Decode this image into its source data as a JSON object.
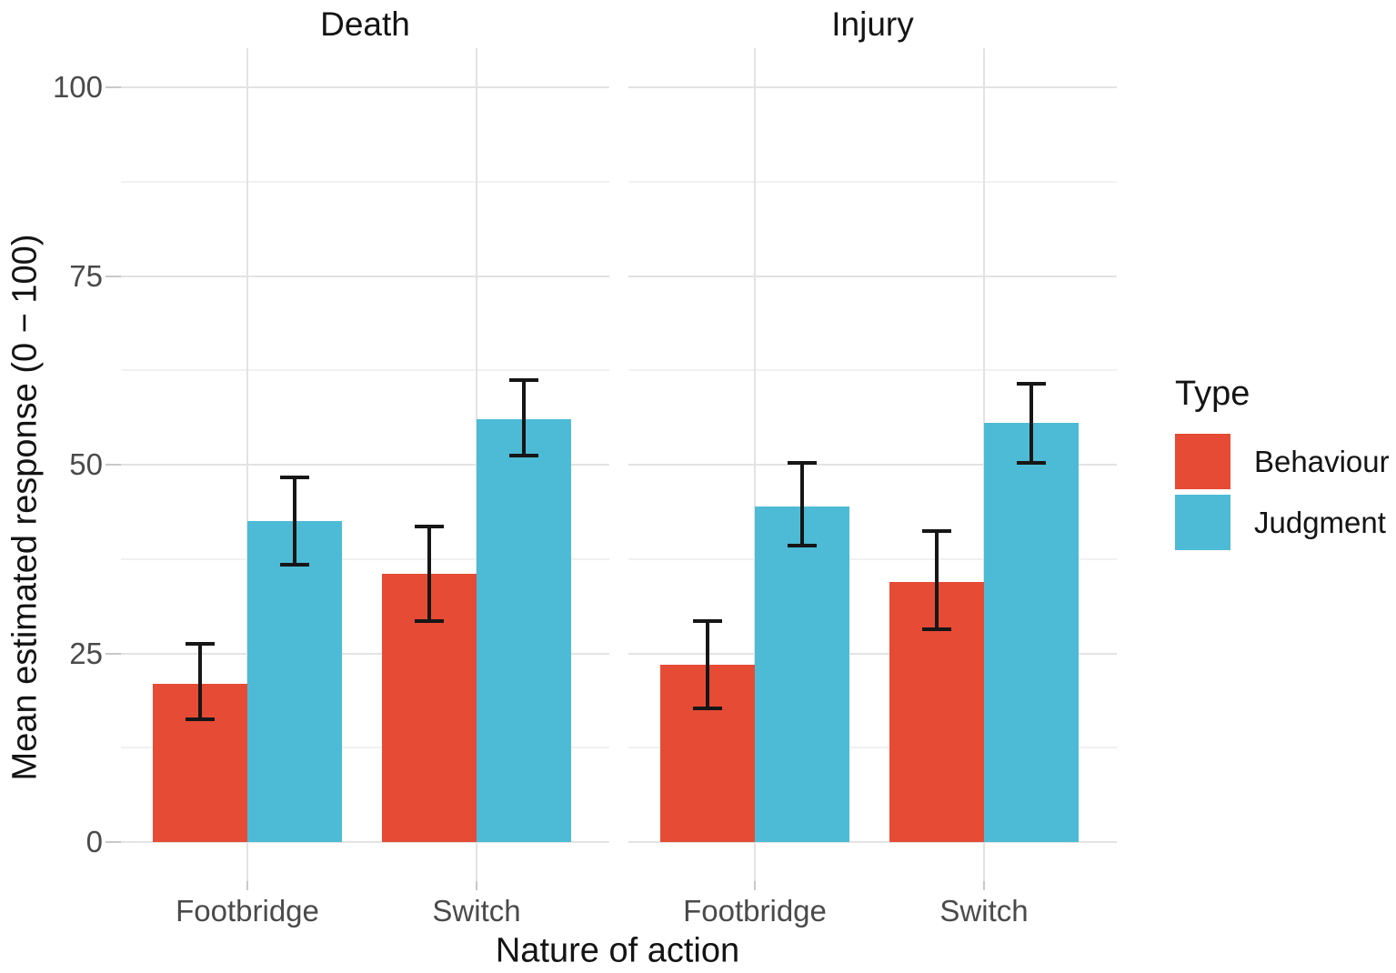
{
  "chart_data": {
    "type": "bar",
    "title": "",
    "xlabel": "Nature of action",
    "ylabel": "Mean estimated response (0 − 100)",
    "yticks": [
      0,
      25,
      50,
      75,
      100
    ],
    "ylim": [
      0,
      100
    ],
    "grid": {
      "major": true,
      "minor": true,
      "minor_step": 12.5
    },
    "categories": [
      "Footbridge",
      "Switch"
    ],
    "legend": {
      "title": "Type",
      "position": "right",
      "entries": [
        {
          "label": "Behaviour",
          "color": "#E64B35"
        },
        {
          "label": "Judgment",
          "color": "#4DBBD5"
        }
      ]
    },
    "facets": [
      {
        "title": "Death",
        "groups": [
          {
            "category": "Footbridge",
            "bars": [
              {
                "series": "Behaviour",
                "color": "#E64B35",
                "value": 21,
                "err_lo": 16,
                "err_hi": 26.5
              },
              {
                "series": "Judgment",
                "color": "#4DBBD5",
                "value": 42.5,
                "err_lo": 36.5,
                "err_hi": 48.5
              }
            ]
          },
          {
            "category": "Switch",
            "bars": [
              {
                "series": "Behaviour",
                "color": "#E64B35",
                "value": 35.5,
                "err_lo": 29,
                "err_hi": 42
              },
              {
                "series": "Judgment",
                "color": "#4DBBD5",
                "value": 56,
                "err_lo": 51,
                "err_hi": 61.5
              }
            ]
          }
        ]
      },
      {
        "title": "Injury",
        "groups": [
          {
            "category": "Footbridge",
            "bars": [
              {
                "series": "Behaviour",
                "color": "#E64B35",
                "value": 23.5,
                "err_lo": 17.5,
                "err_hi": 29.5
              },
              {
                "series": "Judgment",
                "color": "#4DBBD5",
                "value": 44.5,
                "err_lo": 39,
                "err_hi": 50.5
              }
            ]
          },
          {
            "category": "Switch",
            "bars": [
              {
                "series": "Behaviour",
                "color": "#E64B35",
                "value": 34.5,
                "err_lo": 28,
                "err_hi": 41.5
              },
              {
                "series": "Judgment",
                "color": "#4DBBD5",
                "value": 55.5,
                "err_lo": 50,
                "err_hi": 61
              }
            ]
          }
        ]
      }
    ]
  }
}
